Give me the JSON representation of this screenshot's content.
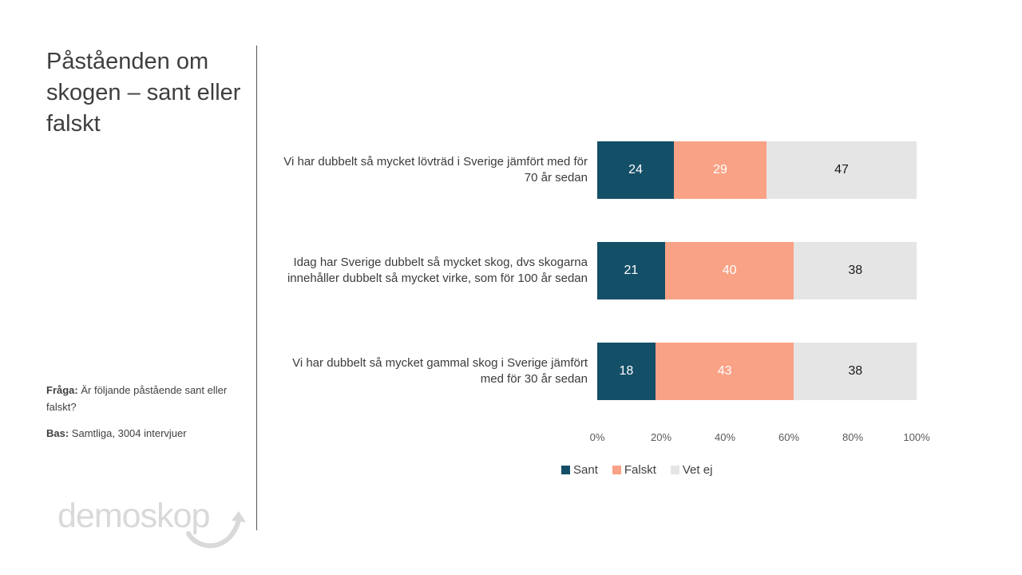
{
  "slide": {
    "title": "Påståenden om skogen – sant eller falskt",
    "question_label": "Fråga:",
    "question_text": " Är följande påstående sant eller falskt?",
    "base_label": "Bas:",
    "base_text": " Samtliga, 3004 intervjuer",
    "logo_text": "demoskop"
  },
  "colors": {
    "accent_teal": "#56b6b9",
    "frame_gray": "#d9d9d9",
    "sant": "#144f68",
    "falskt": "#f9a286",
    "vet_ej": "#e5e5e5",
    "title_text": "#3f3f3f",
    "axis_text": "#595959"
  },
  "chart_data": {
    "type": "bar",
    "orientation": "horizontal",
    "stacked": true,
    "normalized_100": true,
    "categories": [
      "Vi har dubbelt så mycket lövträd i Sverige jämfört med för 70 år sedan",
      "Idag har Sverige dubbelt så mycket skog, dvs skogarna innehåller dubbelt så mycket virke, som för 100 år sedan",
      "Vi har dubbelt så mycket gammal skog i Sverige jämfört med för 30 år sedan"
    ],
    "series": [
      {
        "name": "Sant",
        "color": "#144f68",
        "label_color": "#ffffff",
        "values": [
          24,
          21,
          18
        ]
      },
      {
        "name": "Falskt",
        "color": "#f9a286",
        "label_color": "#ffffff",
        "values": [
          29,
          40,
          43
        ]
      },
      {
        "name": "Vet ej",
        "color": "#e5e5e5",
        "label_color": "#1a1a1a",
        "values": [
          47,
          38,
          38
        ]
      }
    ],
    "x_ticks": [
      "0%",
      "20%",
      "40%",
      "60%",
      "80%",
      "100%"
    ],
    "xlim": [
      0,
      100
    ],
    "grid": false,
    "legend_position": "bottom"
  }
}
